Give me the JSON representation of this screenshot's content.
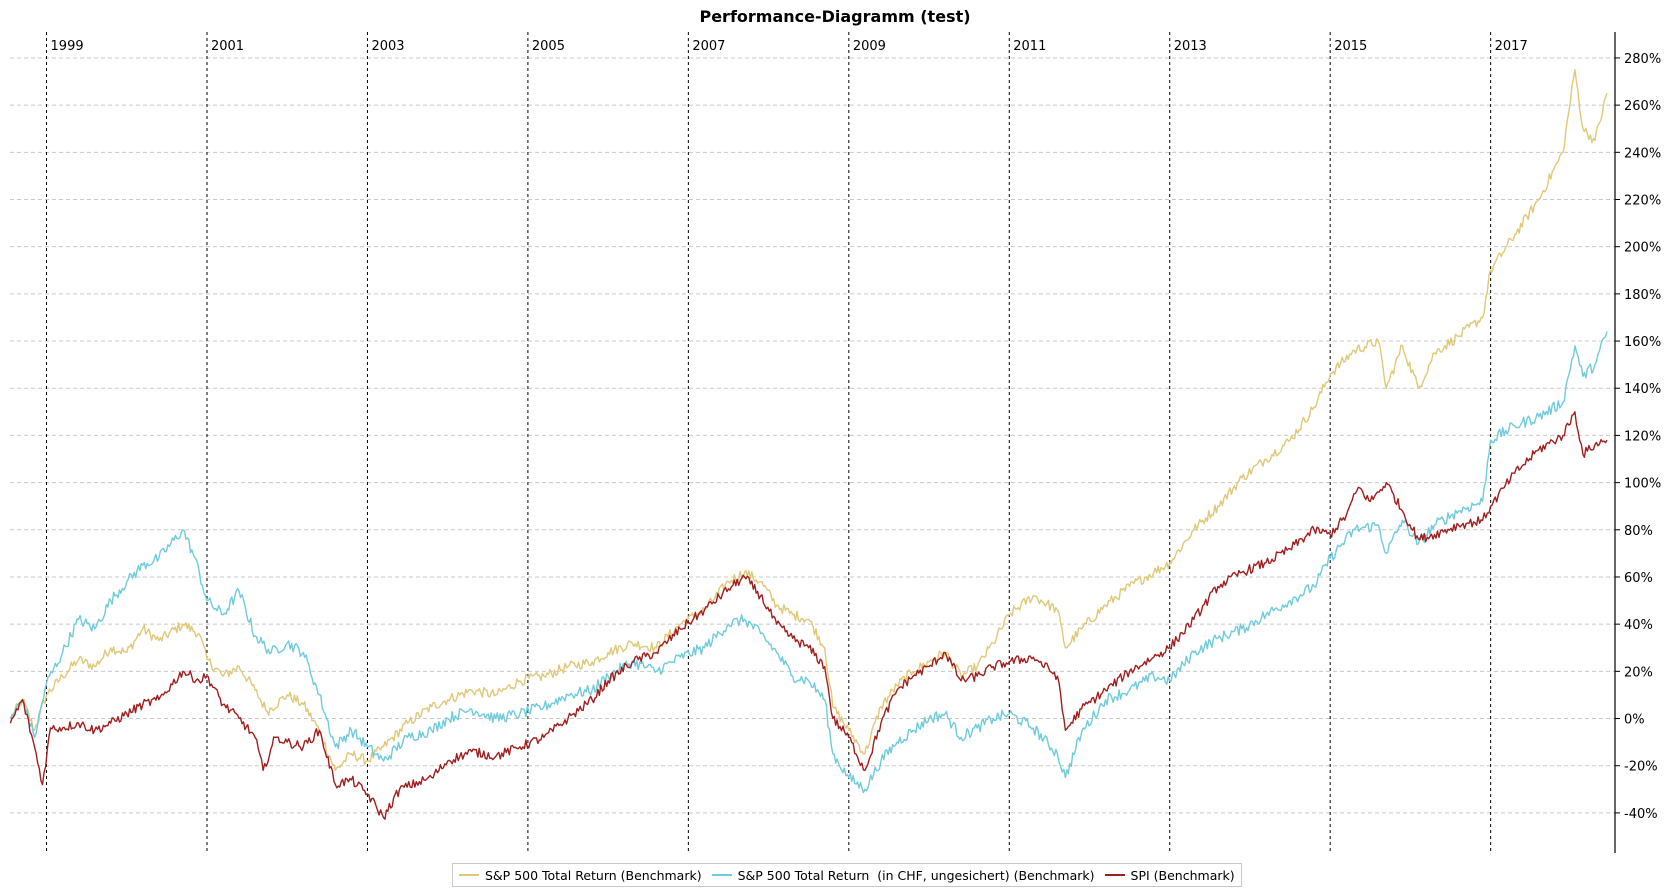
{
  "chart_data": {
    "type": "line",
    "title": "Performance-Diagramm (test)",
    "xlabel": "",
    "ylabel": "",
    "x_tick_labels": [
      "1999",
      "2001",
      "2003",
      "2005",
      "2007",
      "2009",
      "2011",
      "2013",
      "2015",
      "2017"
    ],
    "y_ticks": [
      -40,
      -20,
      0,
      20,
      40,
      60,
      80,
      100,
      120,
      140,
      160,
      180,
      200,
      220,
      240,
      260,
      280
    ],
    "y_tick_labels": [
      "-40%",
      "-20%",
      "0%",
      "20%",
      "40%",
      "60%",
      "80%",
      "100%",
      "120%",
      "140%",
      "160%",
      "180%",
      "200%",
      "220%",
      "240%",
      "260%",
      "280%"
    ],
    "ylim": [
      -57,
      291
    ],
    "xlim": [
      1998.42,
      2018.55
    ],
    "grid": true,
    "legend_position": "bottom-center",
    "series": [
      {
        "name": "S&P 500 Total Return (Benchmark)",
        "color": "#e0c878",
        "points": [
          [
            1998.55,
            0
          ],
          [
            1998.7,
            8
          ],
          [
            1998.85,
            -5
          ],
          [
            1999.0,
            10
          ],
          [
            1999.2,
            18
          ],
          [
            1999.4,
            25
          ],
          [
            1999.6,
            22
          ],
          [
            1999.8,
            30
          ],
          [
            2000.0,
            28
          ],
          [
            2000.2,
            38
          ],
          [
            2000.4,
            33
          ],
          [
            2000.7,
            40
          ],
          [
            2000.9,
            36
          ],
          [
            2001.0,
            25
          ],
          [
            2001.2,
            18
          ],
          [
            2001.4,
            22
          ],
          [
            2001.6,
            12
          ],
          [
            2001.75,
            3
          ],
          [
            2002.0,
            10
          ],
          [
            2002.2,
            6
          ],
          [
            2002.4,
            -5
          ],
          [
            2002.6,
            -22
          ],
          [
            2002.8,
            -15
          ],
          [
            2003.0,
            -18
          ],
          [
            2003.2,
            -12
          ],
          [
            2003.5,
            -2
          ],
          [
            2003.8,
            5
          ],
          [
            2004.0,
            8
          ],
          [
            2004.3,
            12
          ],
          [
            2004.6,
            10
          ],
          [
            2004.9,
            16
          ],
          [
            2005.2,
            18
          ],
          [
            2005.5,
            22
          ],
          [
            2005.8,
            24
          ],
          [
            2006.0,
            28
          ],
          [
            2006.3,
            32
          ],
          [
            2006.6,
            30
          ],
          [
            2006.9,
            40
          ],
          [
            2007.2,
            46
          ],
          [
            2007.5,
            58
          ],
          [
            2007.7,
            62
          ],
          [
            2007.9,
            58
          ],
          [
            2008.1,
            48
          ],
          [
            2008.3,
            44
          ],
          [
            2008.5,
            42
          ],
          [
            2008.7,
            30
          ],
          [
            2008.8,
            5
          ],
          [
            2009.0,
            -5
          ],
          [
            2009.2,
            -15
          ],
          [
            2009.4,
            5
          ],
          [
            2009.6,
            14
          ],
          [
            2009.8,
            20
          ],
          [
            2010.0,
            24
          ],
          [
            2010.2,
            28
          ],
          [
            2010.4,
            18
          ],
          [
            2010.6,
            22
          ],
          [
            2010.8,
            32
          ],
          [
            2011.0,
            44
          ],
          [
            2011.3,
            52
          ],
          [
            2011.6,
            46
          ],
          [
            2011.7,
            30
          ],
          [
            2011.9,
            38
          ],
          [
            2012.2,
            48
          ],
          [
            2012.5,
            56
          ],
          [
            2012.8,
            62
          ],
          [
            2013.0,
            66
          ],
          [
            2013.3,
            80
          ],
          [
            2013.6,
            90
          ],
          [
            2013.9,
            102
          ],
          [
            2014.2,
            110
          ],
          [
            2014.5,
            118
          ],
          [
            2014.8,
            132
          ],
          [
            2015.0,
            146
          ],
          [
            2015.3,
            156
          ],
          [
            2015.6,
            160
          ],
          [
            2015.7,
            140
          ],
          [
            2015.9,
            158
          ],
          [
            2016.1,
            140
          ],
          [
            2016.3,
            155
          ],
          [
            2016.6,
            162
          ],
          [
            2016.9,
            170
          ],
          [
            2017.0,
            190
          ],
          [
            2017.3,
            205
          ],
          [
            2017.6,
            220
          ],
          [
            2017.9,
            240
          ],
          [
            2018.05,
            275
          ],
          [
            2018.15,
            250
          ],
          [
            2018.3,
            245
          ],
          [
            2018.45,
            265
          ]
        ]
      },
      {
        "name": "S&P 500 Total Return  (in CHF, ungesichert) (Benchmark)",
        "color": "#6fcbdc",
        "points": [
          [
            1998.55,
            0
          ],
          [
            1998.7,
            8
          ],
          [
            1998.85,
            -8
          ],
          [
            1999.0,
            15
          ],
          [
            1999.2,
            28
          ],
          [
            1999.4,
            42
          ],
          [
            1999.6,
            38
          ],
          [
            1999.8,
            50
          ],
          [
            2000.0,
            58
          ],
          [
            2000.2,
            65
          ],
          [
            2000.4,
            68
          ],
          [
            2000.7,
            80
          ],
          [
            2000.85,
            68
          ],
          [
            2001.0,
            50
          ],
          [
            2001.2,
            44
          ],
          [
            2001.4,
            54
          ],
          [
            2001.6,
            35
          ],
          [
            2001.8,
            28
          ],
          [
            2002.0,
            32
          ],
          [
            2002.2,
            28
          ],
          [
            2002.4,
            10
          ],
          [
            2002.6,
            -12
          ],
          [
            2002.8,
            -5
          ],
          [
            2003.0,
            -12
          ],
          [
            2003.2,
            -18
          ],
          [
            2003.5,
            -8
          ],
          [
            2003.8,
            -5
          ],
          [
            2004.0,
            0
          ],
          [
            2004.3,
            4
          ],
          [
            2004.6,
            0
          ],
          [
            2004.9,
            2
          ],
          [
            2005.2,
            5
          ],
          [
            2005.5,
            10
          ],
          [
            2005.8,
            12
          ],
          [
            2006.0,
            18
          ],
          [
            2006.3,
            24
          ],
          [
            2006.6,
            20
          ],
          [
            2006.9,
            26
          ],
          [
            2007.2,
            30
          ],
          [
            2007.5,
            40
          ],
          [
            2007.7,
            42
          ],
          [
            2007.9,
            36
          ],
          [
            2008.1,
            28
          ],
          [
            2008.3,
            18
          ],
          [
            2008.5,
            16
          ],
          [
            2008.7,
            8
          ],
          [
            2008.8,
            -15
          ],
          [
            2009.0,
            -25
          ],
          [
            2009.2,
            -30
          ],
          [
            2009.4,
            -18
          ],
          [
            2009.6,
            -10
          ],
          [
            2009.8,
            -5
          ],
          [
            2010.0,
            0
          ],
          [
            2010.2,
            2
          ],
          [
            2010.4,
            -8
          ],
          [
            2010.6,
            -4
          ],
          [
            2010.8,
            0
          ],
          [
            2011.0,
            2
          ],
          [
            2011.3,
            -4
          ],
          [
            2011.6,
            -15
          ],
          [
            2011.7,
            -25
          ],
          [
            2011.9,
            -6
          ],
          [
            2012.2,
            8
          ],
          [
            2012.5,
            12
          ],
          [
            2012.8,
            18
          ],
          [
            2013.0,
            16
          ],
          [
            2013.3,
            28
          ],
          [
            2013.6,
            34
          ],
          [
            2013.9,
            38
          ],
          [
            2014.2,
            44
          ],
          [
            2014.5,
            50
          ],
          [
            2014.8,
            56
          ],
          [
            2015.0,
            68
          ],
          [
            2015.3,
            80
          ],
          [
            2015.6,
            82
          ],
          [
            2015.7,
            70
          ],
          [
            2015.9,
            84
          ],
          [
            2016.1,
            74
          ],
          [
            2016.3,
            82
          ],
          [
            2016.6,
            88
          ],
          [
            2016.9,
            92
          ],
          [
            2017.0,
            118
          ],
          [
            2017.3,
            124
          ],
          [
            2017.6,
            128
          ],
          [
            2017.9,
            134
          ],
          [
            2018.05,
            158
          ],
          [
            2018.15,
            145
          ],
          [
            2018.3,
            150
          ],
          [
            2018.45,
            164
          ]
        ]
      },
      {
        "name": "SPI (Benchmark)",
        "color": "#a01e1e",
        "points": [
          [
            1998.55,
            -2
          ],
          [
            1998.7,
            8
          ],
          [
            1998.85,
            -12
          ],
          [
            1998.95,
            -28
          ],
          [
            1999.05,
            -4
          ],
          [
            1999.2,
            -4
          ],
          [
            1999.4,
            -2
          ],
          [
            1999.6,
            -5
          ],
          [
            1999.8,
            -2
          ],
          [
            2000.0,
            2
          ],
          [
            2000.2,
            6
          ],
          [
            2000.4,
            8
          ],
          [
            2000.7,
            20
          ],
          [
            2000.9,
            16
          ],
          [
            2001.0,
            18
          ],
          [
            2001.2,
            6
          ],
          [
            2001.4,
            0
          ],
          [
            2001.6,
            -8
          ],
          [
            2001.7,
            -22
          ],
          [
            2001.85,
            -8
          ],
          [
            2002.0,
            -10
          ],
          [
            2002.2,
            -12
          ],
          [
            2002.4,
            -5
          ],
          [
            2002.6,
            -28
          ],
          [
            2002.8,
            -26
          ],
          [
            2003.0,
            -32
          ],
          [
            2003.2,
            -42
          ],
          [
            2003.4,
            -30
          ],
          [
            2003.8,
            -25
          ],
          [
            2004.0,
            -18
          ],
          [
            2004.3,
            -14
          ],
          [
            2004.6,
            -16
          ],
          [
            2004.9,
            -12
          ],
          [
            2005.2,
            -8
          ],
          [
            2005.5,
            0
          ],
          [
            2005.8,
            8
          ],
          [
            2006.0,
            16
          ],
          [
            2006.3,
            24
          ],
          [
            2006.6,
            28
          ],
          [
            2006.9,
            38
          ],
          [
            2007.2,
            46
          ],
          [
            2007.5,
            55
          ],
          [
            2007.7,
            60
          ],
          [
            2007.9,
            52
          ],
          [
            2008.1,
            40
          ],
          [
            2008.3,
            34
          ],
          [
            2008.5,
            30
          ],
          [
            2008.7,
            22
          ],
          [
            2008.8,
            0
          ],
          [
            2009.0,
            -8
          ],
          [
            2009.2,
            -22
          ],
          [
            2009.4,
            -2
          ],
          [
            2009.6,
            12
          ],
          [
            2009.8,
            18
          ],
          [
            2010.0,
            22
          ],
          [
            2010.2,
            28
          ],
          [
            2010.4,
            16
          ],
          [
            2010.6,
            18
          ],
          [
            2010.8,
            22
          ],
          [
            2011.0,
            24
          ],
          [
            2011.3,
            26
          ],
          [
            2011.6,
            18
          ],
          [
            2011.7,
            -5
          ],
          [
            2011.9,
            4
          ],
          [
            2012.2,
            12
          ],
          [
            2012.5,
            20
          ],
          [
            2012.8,
            26
          ],
          [
            2013.0,
            30
          ],
          [
            2013.3,
            42
          ],
          [
            2013.6,
            56
          ],
          [
            2013.9,
            62
          ],
          [
            2014.2,
            66
          ],
          [
            2014.5,
            72
          ],
          [
            2014.8,
            80
          ],
          [
            2015.0,
            78
          ],
          [
            2015.2,
            86
          ],
          [
            2015.35,
            98
          ],
          [
            2015.5,
            92
          ],
          [
            2015.7,
            100
          ],
          [
            2015.9,
            88
          ],
          [
            2016.1,
            76
          ],
          [
            2016.3,
            78
          ],
          [
            2016.6,
            82
          ],
          [
            2016.9,
            84
          ],
          [
            2017.0,
            90
          ],
          [
            2017.3,
            104
          ],
          [
            2017.6,
            114
          ],
          [
            2017.9,
            120
          ],
          [
            2018.05,
            130
          ],
          [
            2018.15,
            112
          ],
          [
            2018.3,
            116
          ],
          [
            2018.45,
            118
          ]
        ]
      }
    ]
  }
}
